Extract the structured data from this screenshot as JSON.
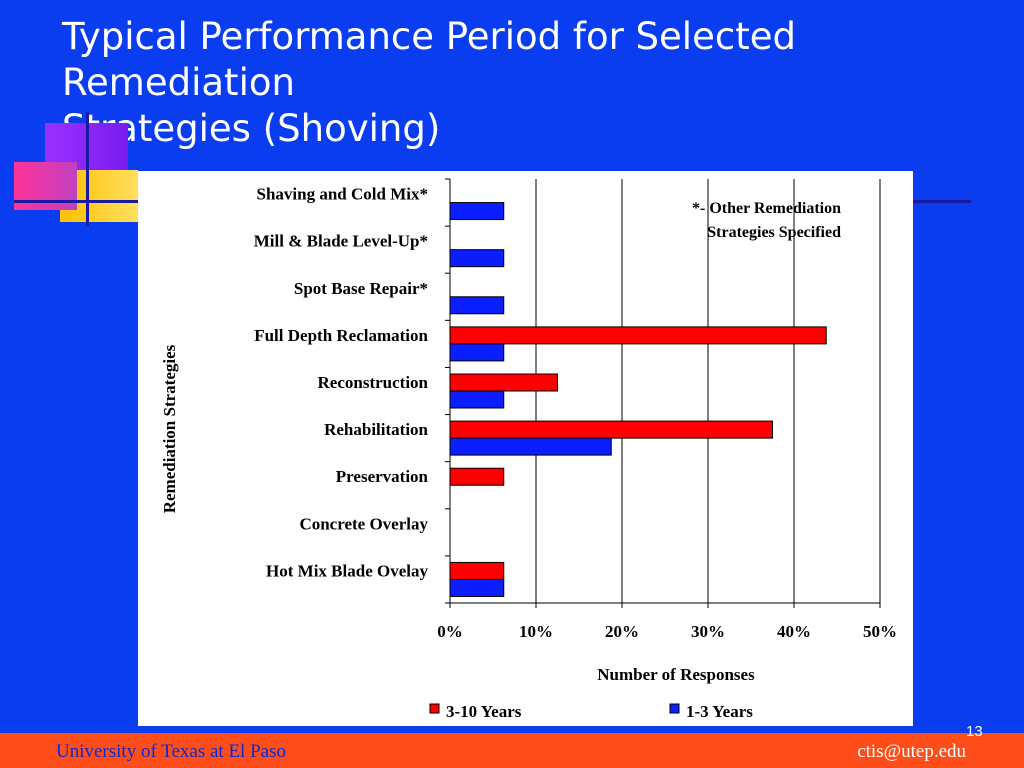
{
  "slide": {
    "title_line1": "Typical Performance Period for Selected Remediation",
    "title_line2": "Strategies  (Shoving)",
    "footer_left": "University of Texas at El Paso",
    "footer_right": "ctis@utep.edu",
    "page_number": "13"
  },
  "colors": {
    "background": "#0A3DF0",
    "footer": "#FF4D1A",
    "series_long": "#FF0000",
    "series_short": "#0A1EFF"
  },
  "chart_data": {
    "type": "bar",
    "orientation": "horizontal",
    "title": "",
    "xlabel": "Number of Responses",
    "ylabel": "Remediation Strategies",
    "xlim": [
      0,
      50
    ],
    "x_ticks": [
      "0%",
      "10%",
      "20%",
      "30%",
      "40%",
      "50%"
    ],
    "grid": true,
    "legend_position": "bottom",
    "annotation_line1": "*- Other Remediation",
    "annotation_line2": "Strategies Specified",
    "categories": [
      "Shaving and Cold Mix*",
      "Mill & Blade Level-Up*",
      "Spot Base Repair*",
      "Full Depth Reclamation",
      "Reconstruction",
      "Rehabilitation",
      "Preservation",
      "Concrete Overlay",
      "Hot Mix Blade Ovelay"
    ],
    "series": [
      {
        "name": "3-10 Years",
        "values": [
          0,
          0,
          0,
          43.75,
          12.5,
          37.5,
          6.25,
          0,
          6.25
        ]
      },
      {
        "name": "1-3 Years",
        "values": [
          6.25,
          6.25,
          6.25,
          6.25,
          6.25,
          18.75,
          0,
          0,
          6.25
        ]
      }
    ]
  }
}
